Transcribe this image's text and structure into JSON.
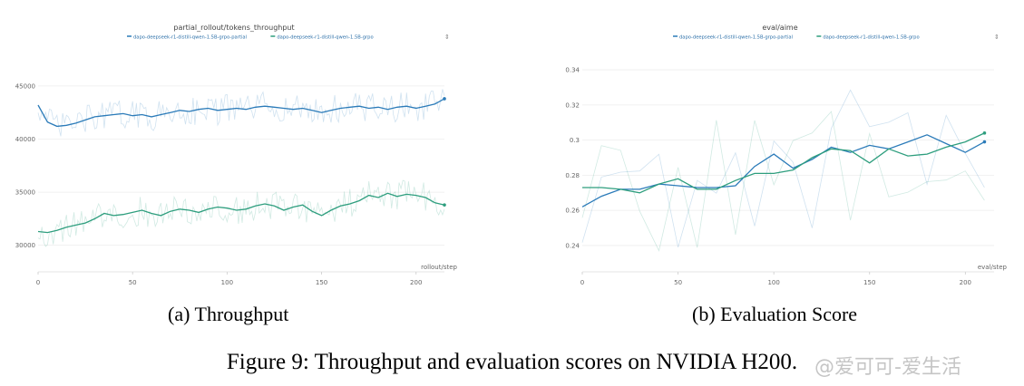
{
  "chart_data": [
    {
      "type": "line",
      "title": "partial_rollout/tokens_throughput",
      "xlabel": "rollout/step",
      "ylabel": "",
      "xlim": [
        0,
        215
      ],
      "ylim": [
        27500,
        49000
      ],
      "x_ticks": [
        0,
        50,
        100,
        150,
        200
      ],
      "x_tick_labels": [
        "0",
        "50",
        "100",
        "150",
        "200"
      ],
      "y_ticks": [
        30000,
        35000,
        40000,
        45000
      ],
      "y_tick_labels": [
        "30000",
        "35000",
        "40000",
        "45000"
      ],
      "grid": true,
      "legend_position": "top",
      "series": [
        {
          "name": "dapo-deepseek-r1-distill-qwen-1.5B-grpo-partial",
          "color": "#2b7bb9",
          "x": [
            0,
            5,
            10,
            15,
            20,
            25,
            30,
            35,
            40,
            45,
            50,
            55,
            60,
            65,
            70,
            75,
            80,
            85,
            90,
            95,
            100,
            105,
            110,
            115,
            120,
            125,
            130,
            135,
            140,
            145,
            150,
            155,
            160,
            165,
            170,
            175,
            180,
            185,
            190,
            195,
            200,
            205,
            210,
            215
          ],
          "values": [
            43200,
            41600,
            41200,
            41300,
            41500,
            41800,
            42100,
            42200,
            42300,
            42400,
            42200,
            42300,
            42100,
            42300,
            42500,
            42700,
            42600,
            42800,
            42900,
            42700,
            42800,
            42900,
            42800,
            43000,
            43100,
            43000,
            42900,
            42800,
            42900,
            42700,
            42500,
            42700,
            42900,
            43000,
            43100,
            42900,
            43000,
            42800,
            43000,
            43100,
            42900,
            43100,
            43300,
            43800
          ]
        },
        {
          "name": "dapo-deepseek-r1-distill-qwen-1.5B-grpo",
          "color": "#2e9e7e",
          "x": [
            0,
            5,
            10,
            15,
            20,
            25,
            30,
            35,
            40,
            45,
            50,
            55,
            60,
            65,
            70,
            75,
            80,
            85,
            90,
            95,
            100,
            105,
            110,
            115,
            120,
            125,
            130,
            135,
            140,
            145,
            150,
            155,
            160,
            165,
            170,
            175,
            180,
            185,
            190,
            195,
            200,
            205,
            210,
            215
          ],
          "values": [
            31300,
            31200,
            31400,
            31700,
            31900,
            32100,
            32500,
            33000,
            32800,
            32900,
            33100,
            33300,
            33000,
            32800,
            33200,
            33400,
            33300,
            33100,
            33400,
            33600,
            33500,
            33300,
            33400,
            33700,
            33900,
            33700,
            33300,
            33600,
            33800,
            33200,
            32800,
            33300,
            33700,
            33900,
            34200,
            34700,
            34500,
            34900,
            34600,
            34800,
            34700,
            34500,
            34000,
            33800
          ]
        }
      ]
    },
    {
      "type": "line",
      "title": "eval/aime",
      "xlabel": "eval/step",
      "ylabel": "",
      "xlim": [
        0,
        215
      ],
      "ylim": [
        0.225,
        0.355
      ],
      "x_ticks": [
        0,
        50,
        100,
        150,
        200
      ],
      "x_tick_labels": [
        "0",
        "50",
        "100",
        "150",
        "200"
      ],
      "y_ticks": [
        0.24,
        0.26,
        0.28,
        0.3,
        0.32,
        0.34
      ],
      "y_tick_labels": [
        "0.24",
        "0.26",
        "0.28",
        "0.3",
        "0.32",
        "0.34"
      ],
      "grid": true,
      "legend_position": "top",
      "series": [
        {
          "name": "dapo-deepseek-r1-distill-qwen-1.5B-grpo-partial",
          "color": "#2b7bb9",
          "x": [
            0,
            10,
            20,
            30,
            40,
            50,
            60,
            70,
            80,
            90,
            100,
            110,
            120,
            130,
            140,
            150,
            160,
            170,
            180,
            190,
            200,
            210
          ],
          "values": [
            0.262,
            0.268,
            0.272,
            0.272,
            0.275,
            0.274,
            0.273,
            0.273,
            0.274,
            0.285,
            0.292,
            0.284,
            0.289,
            0.296,
            0.293,
            0.297,
            0.295,
            0.299,
            0.303,
            0.298,
            0.293,
            0.299
          ]
        },
        {
          "name": "dapo-deepseek-r1-distill-qwen-1.5B-grpo",
          "color": "#2e9e7e",
          "x": [
            0,
            10,
            20,
            30,
            40,
            50,
            60,
            70,
            80,
            90,
            100,
            110,
            120,
            130,
            140,
            150,
            160,
            170,
            180,
            190,
            200,
            210
          ],
          "values": [
            0.273,
            0.273,
            0.272,
            0.27,
            0.275,
            0.278,
            0.272,
            0.272,
            0.277,
            0.281,
            0.281,
            0.283,
            0.29,
            0.295,
            0.294,
            0.287,
            0.295,
            0.291,
            0.292,
            0.296,
            0.299,
            0.304
          ]
        }
      ]
    }
  ],
  "captions": {
    "a": "(a) Throughput",
    "b": "(b) Evaluation Score",
    "figure": "Figure 9: Throughput and evaluation scores on NVIDIA H200."
  },
  "watermark": "@爱可可-爱生活"
}
